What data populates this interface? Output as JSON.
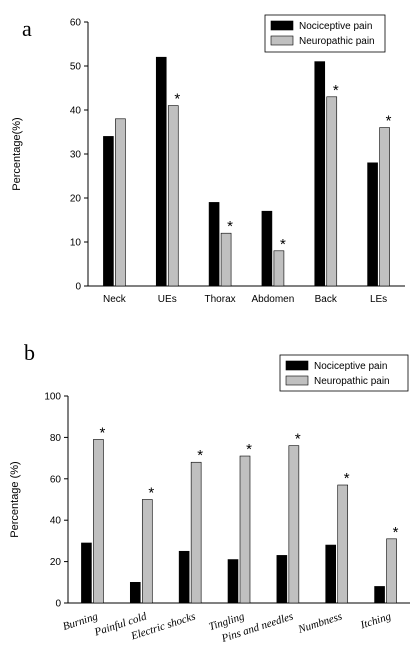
{
  "chart_data": [
    {
      "type": "bar",
      "panel_label": "a",
      "y_label": "Percentage(%)",
      "categories": [
        "Neck",
        "UEs",
        "Thorax",
        "Abdomen",
        "Back",
        "LEs"
      ],
      "series": [
        {
          "name": "Nociceptive pain",
          "color": "#000000",
          "values": [
            34,
            52,
            19,
            17,
            51,
            28
          ]
        },
        {
          "name": "Neuropathic pain",
          "color": "#c0c0c0",
          "values": [
            38,
            41,
            12,
            8,
            43,
            36
          ],
          "markers": [
            null,
            "*",
            "*",
            "*",
            "*",
            "*"
          ]
        }
      ],
      "ylim": [
        0,
        60
      ],
      "yticks": [
        0,
        10,
        20,
        30,
        40,
        50,
        60
      ],
      "grid": false,
      "legend": "top-right"
    },
    {
      "type": "bar",
      "panel_label": "b",
      "y_label": "Percentage (%)",
      "categories": [
        "Burning",
        "Painful cold",
        "Electric shocks",
        "Tingling",
        "Pins and needles",
        "Numbness",
        "Itching"
      ],
      "series": [
        {
          "name": "Nociceptive pain",
          "color": "#000000",
          "values": [
            29,
            10,
            25,
            21,
            23,
            28,
            8
          ]
        },
        {
          "name": "Neuropathic pain",
          "color": "#c0c0c0",
          "values": [
            79,
            50,
            68,
            71,
            76,
            57,
            31
          ],
          "markers": [
            "*",
            "*",
            "*",
            "*",
            "*",
            "*",
            "*"
          ]
        }
      ],
      "ylim": [
        0,
        100
      ],
      "yticks": [
        0,
        20,
        40,
        60,
        80,
        100
      ],
      "grid": false,
      "legend": "top-right"
    }
  ]
}
